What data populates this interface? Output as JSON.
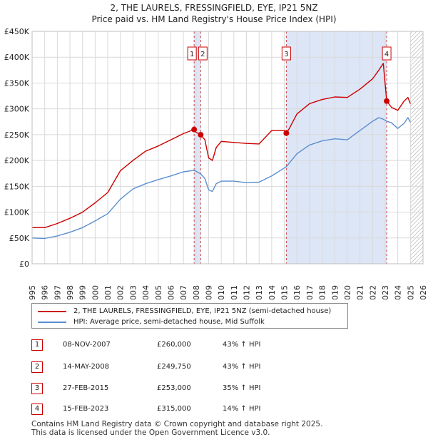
{
  "chart_data": {
    "type": "line",
    "title": "2, THE LAURELS, FRESSINGFIELD, EYE, IP21 5NZ",
    "subtitle": "Price paid vs. HM Land Registry's House Price Index (HPI)",
    "ylim": [
      0,
      450000
    ],
    "xlim": [
      1995,
      2026
    ],
    "yticks": [
      "£0",
      "£50K",
      "£100K",
      "£150K",
      "£200K",
      "£250K",
      "£300K",
      "£350K",
      "£400K",
      "£450K"
    ],
    "ytick_values": [
      0,
      50000,
      100000,
      150000,
      200000,
      250000,
      300000,
      350000,
      400000,
      450000
    ],
    "xticks": [
      "1995",
      "1996",
      "1997",
      "1998",
      "1999",
      "2000",
      "2001",
      "2002",
      "2003",
      "2004",
      "2005",
      "2006",
      "2007",
      "2008",
      "2009",
      "2010",
      "2011",
      "2012",
      "2013",
      "2014",
      "2015",
      "2016",
      "2017",
      "2018",
      "2019",
      "2020",
      "2021",
      "2022",
      "2023",
      "2024",
      "2025",
      "2026"
    ],
    "shaded_ranges": [
      [
        2007.85,
        2008.37
      ],
      [
        2015.16,
        2023.12
      ]
    ],
    "future_hatch_from": 2025.0,
    "series": [
      {
        "name": "2, THE LAURELS, FRESSINGFIELD, EYE, IP21 5NZ (semi-detached house)",
        "color": "#cc0000",
        "x": [
          1995,
          1996,
          1997,
          1998,
          1999,
          2000,
          2001,
          2002,
          2003,
          2004,
          2005,
          2006,
          2007,
          2007.85,
          2008.0,
          2008.37,
          2008.7,
          2009.0,
          2009.3,
          2009.6,
          2010,
          2011,
          2012,
          2013,
          2014,
          2015.0,
          2015.16,
          2015.4,
          2016,
          2017,
          2018,
          2019,
          2020,
          2021,
          2022,
          2022.5,
          2022.85,
          2023.12,
          2023.5,
          2024,
          2024.5,
          2024.8,
          2025.0
        ],
        "y": [
          70000,
          70000,
          78000,
          88000,
          100000,
          118000,
          138000,
          180000,
          200000,
          218000,
          228000,
          240000,
          252000,
          260000,
          255000,
          249750,
          240000,
          205000,
          200000,
          225000,
          237000,
          235000,
          233000,
          232000,
          258000,
          258000,
          253000,
          262000,
          290000,
          310000,
          318000,
          323000,
          322000,
          338000,
          358000,
          375000,
          388000,
          315000,
          303000,
          297000,
          315000,
          322000,
          310000
        ]
      },
      {
        "name": "HPI: Average price, semi-detached house, Mid Suffolk",
        "color": "#5b8fcf",
        "x": [
          1995,
          1996,
          1997,
          1998,
          1999,
          2000,
          2001,
          2002,
          2003,
          2004,
          2005,
          2006,
          2007,
          2007.85,
          2008.37,
          2008.7,
          2009.0,
          2009.3,
          2009.6,
          2010,
          2011,
          2012,
          2013,
          2014,
          2015.16,
          2016,
          2017,
          2018,
          2019,
          2020,
          2021,
          2022,
          2022.5,
          2022.85,
          2023.12,
          2023.5,
          2024,
          2024.5,
          2024.8,
          2025.0
        ],
        "y": [
          50000,
          49000,
          54000,
          61000,
          70000,
          83000,
          97000,
          125000,
          145000,
          155000,
          163000,
          170000,
          178000,
          181000,
          174000,
          165000,
          143000,
          140000,
          155000,
          160000,
          160000,
          157000,
          158000,
          170000,
          188000,
          213000,
          230000,
          238000,
          242000,
          240000,
          258000,
          276000,
          283000,
          280000,
          276000,
          273000,
          262000,
          272000,
          283000,
          274000
        ]
      }
    ],
    "sales": [
      {
        "id": "1",
        "date": "08-NOV-2007",
        "price": "£260,000",
        "hpi": "43% ↑ HPI",
        "x": 2007.85,
        "y": 260000
      },
      {
        "id": "2",
        "date": "14-MAY-2008",
        "price": "£249,750",
        "hpi": "43% ↑ HPI",
        "x": 2008.37,
        "y": 249750
      },
      {
        "id": "3",
        "date": "27-FEB-2015",
        "price": "£253,000",
        "hpi": "35% ↑ HPI",
        "x": 2015.16,
        "y": 253000
      },
      {
        "id": "4",
        "date": "15-FEB-2023",
        "price": "£315,000",
        "hpi": "14% ↑ HPI",
        "x": 2023.12,
        "y": 315000
      }
    ]
  },
  "title_line1": "2, THE LAURELS, FRESSINGFIELD, EYE, IP21 5NZ",
  "title_line2": "Price paid vs. HM Land Registry's House Price Index (HPI)",
  "legend": {
    "property_label": "2, THE LAURELS, FRESSINGFIELD, EYE, IP21 5NZ (semi-detached house)",
    "hpi_label": "HPI: Average price, semi-detached house, Mid Suffolk",
    "property_color": "#cc0000",
    "hpi_color": "#5b8fcf"
  },
  "footer": {
    "line1": "Contains HM Land Registry data © Crown copyright and database right 2025.",
    "line2": "This data is licensed under the Open Government Licence v3.0."
  }
}
